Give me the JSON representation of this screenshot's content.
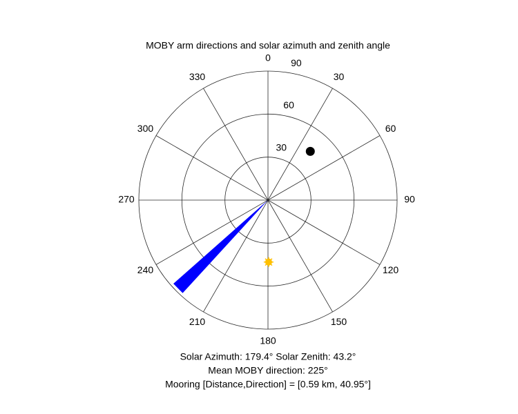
{
  "chart_data": {
    "type": "polar",
    "title": "MOBY arm directions and solar azimuth and zenith angle",
    "theta_zero": "N",
    "theta_direction": "clockwise",
    "rlim": [
      0,
      90
    ],
    "rticks": [
      30,
      60,
      90
    ],
    "rtick_angle": 10,
    "thetaticks": [
      0,
      30,
      60,
      90,
      120,
      150,
      180,
      210,
      240,
      270,
      300,
      330
    ],
    "points": [
      {
        "theta": 40.95,
        "r": 45,
        "color": "#000000"
      },
      {
        "theta": 179.4,
        "r": 43.2,
        "color": "#ffc000"
      }
    ],
    "wedge": {
      "theta": [
        222.5,
        228.5
      ],
      "r": 88,
      "color": "#0000ff"
    },
    "annotations": [
      "Solar Azimuth: 179.4°    Solar Zenith: 43.2°",
      "Mean MOBY direction: 225°",
      "Mooring [Distance,Direction] = [0.59 km, 40.95°]"
    ]
  }
}
